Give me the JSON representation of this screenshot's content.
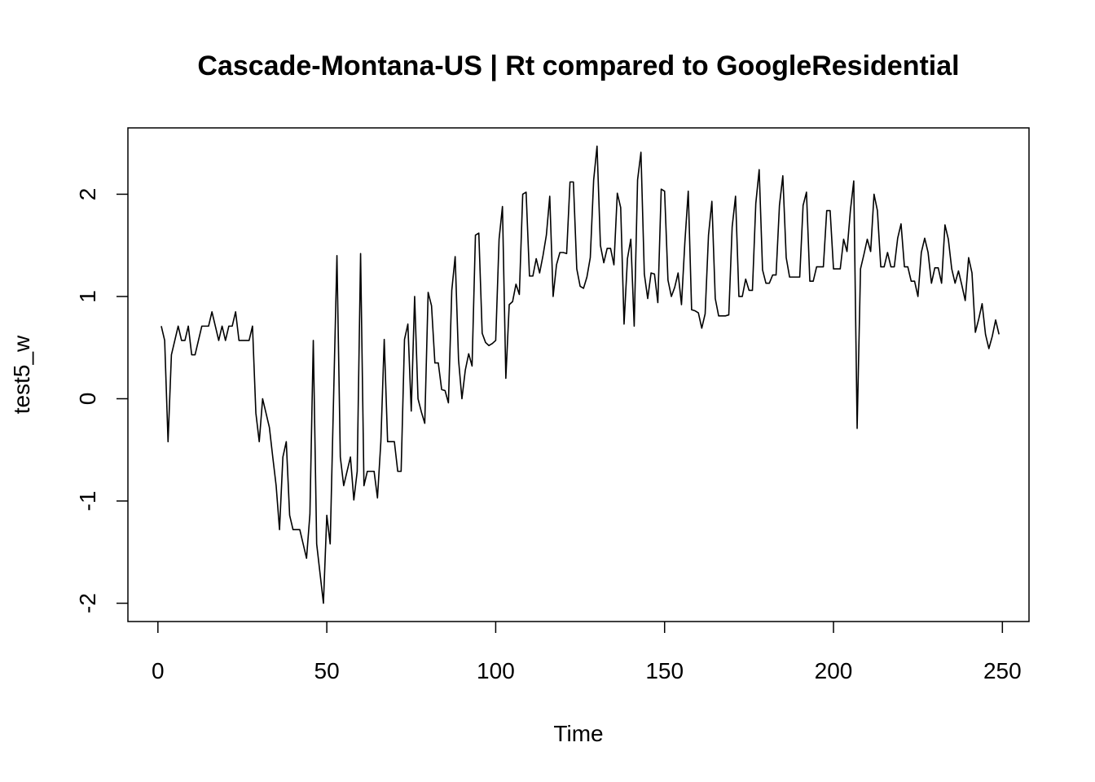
{
  "chart_data": {
    "type": "line",
    "title": "Cascade-Montana-US | Rt compared to GoogleResidential",
    "xlabel": "Time",
    "ylabel": "test5_w",
    "xlim": [
      1,
      248
    ],
    "ylim": [
      -2.0,
      2.47
    ],
    "x_ticks": [
      0,
      50,
      100,
      150,
      200,
      250
    ],
    "y_ticks": [
      -2,
      -1,
      0,
      1,
      2
    ],
    "grid": false,
    "legend": "none",
    "line_color": "#000000",
    "series": [
      {
        "x_start": 1,
        "x_step": 1,
        "values": [
          0.71,
          0.57,
          -0.42,
          0.43,
          0.57,
          0.71,
          0.57,
          0.57,
          0.71,
          0.43,
          0.43,
          0.57,
          0.71,
          0.71,
          0.71,
          0.85,
          0.71,
          0.57,
          0.71,
          0.57,
          0.71,
          0.71,
          0.85,
          0.57,
          0.57,
          0.57,
          0.57,
          0.71,
          -0.14,
          -0.42,
          0.0,
          -0.14,
          -0.28,
          -0.57,
          -0.85,
          -1.28,
          -0.57,
          -0.42,
          -1.14,
          -1.28,
          -1.28,
          -1.28,
          -1.42,
          -1.56,
          -1.13,
          0.57,
          -1.42,
          -1.71,
          -2.0,
          -1.14,
          -1.42,
          0.0,
          1.4,
          -0.57,
          -0.85,
          -0.71,
          -0.57,
          -0.99,
          -0.71,
          1.42,
          -0.85,
          -0.71,
          -0.71,
          -0.71,
          -0.97,
          -0.42,
          0.58,
          -0.42,
          -0.42,
          -0.42,
          -0.71,
          -0.71,
          0.58,
          0.73,
          -0.12,
          1.0,
          0.0,
          -0.13,
          -0.24,
          1.04,
          0.91,
          0.35,
          0.35,
          0.09,
          0.08,
          -0.04,
          1.06,
          1.39,
          0.38,
          0.0,
          0.28,
          0.44,
          0.32,
          1.6,
          1.62,
          0.64,
          0.55,
          0.52,
          0.54,
          0.57,
          1.56,
          1.88,
          0.2,
          0.92,
          0.95,
          1.12,
          1.02,
          2.0,
          2.02,
          1.2,
          1.2,
          1.37,
          1.23,
          1.4,
          1.6,
          1.98,
          1.0,
          1.31,
          1.43,
          1.43,
          1.42,
          2.12,
          2.12,
          1.27,
          1.1,
          1.08,
          1.19,
          1.38,
          2.14,
          2.47,
          1.5,
          1.33,
          1.47,
          1.47,
          1.31,
          2.01,
          1.87,
          0.73,
          1.37,
          1.56,
          0.71,
          2.14,
          2.41,
          1.22,
          0.98,
          1.23,
          1.22,
          0.94,
          2.05,
          2.03,
          1.16,
          1.0,
          1.09,
          1.23,
          0.92,
          1.53,
          2.03,
          0.87,
          0.86,
          0.84,
          0.69,
          0.83,
          1.6,
          1.93,
          0.98,
          0.81,
          0.81,
          0.81,
          0.82,
          1.68,
          1.98,
          1.0,
          1.0,
          1.17,
          1.06,
          1.06,
          1.91,
          2.24,
          1.26,
          1.13,
          1.13,
          1.21,
          1.21,
          1.89,
          2.18,
          1.38,
          1.19,
          1.19,
          1.19,
          1.19,
          1.89,
          2.02,
          1.15,
          1.15,
          1.29,
          1.29,
          1.29,
          1.84,
          1.84,
          1.27,
          1.27,
          1.27,
          1.56,
          1.44,
          1.84,
          2.13,
          -0.29,
          1.27,
          1.41,
          1.56,
          1.44,
          2.0,
          1.84,
          1.29,
          1.29,
          1.43,
          1.29,
          1.29,
          1.57,
          1.71,
          1.29,
          1.29,
          1.15,
          1.15,
          1.0,
          1.43,
          1.57,
          1.43,
          1.13,
          1.28,
          1.28,
          1.13,
          1.7,
          1.56,
          1.27,
          1.13,
          1.25,
          1.11,
          0.96,
          1.38,
          1.23,
          0.65,
          0.78,
          0.93,
          0.63,
          0.49,
          0.61,
          0.77,
          0.63
        ]
      }
    ]
  }
}
